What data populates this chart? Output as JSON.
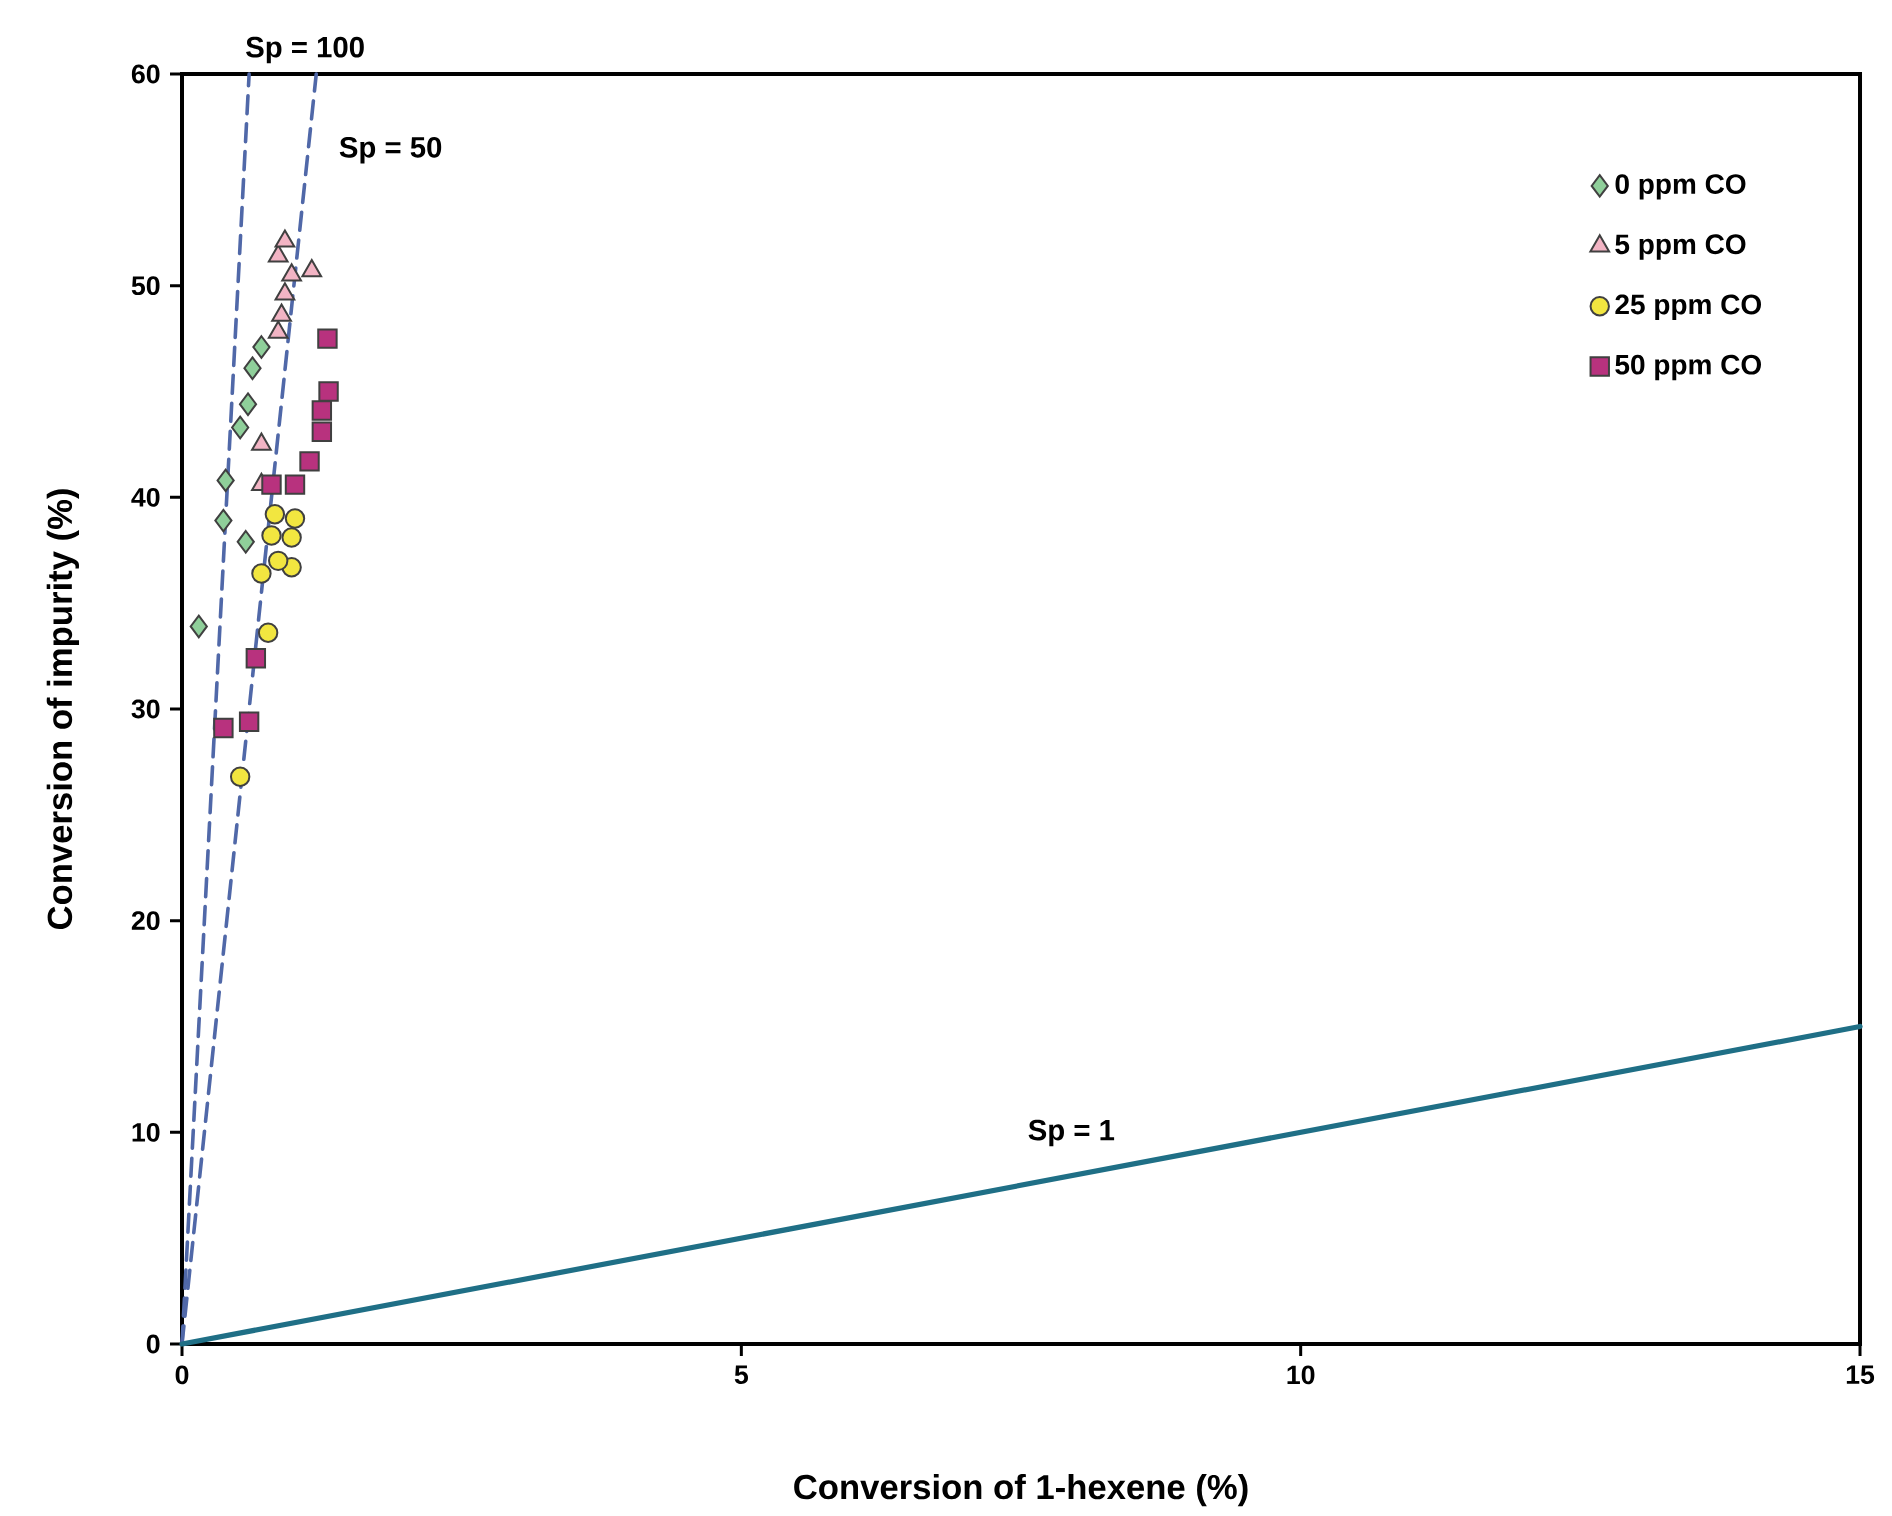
{
  "chart_data": {
    "type": "scatter",
    "xlabel": "Conversion of 1-hexene (%)",
    "ylabel": "Conversion of impurity (%)",
    "xlim": [
      0,
      15
    ],
    "ylim": [
      0,
      60
    ],
    "xticks": [
      0,
      5,
      10,
      15
    ],
    "yticks": [
      0,
      10,
      20,
      30,
      40,
      50,
      60
    ],
    "legend": "top right",
    "series": [
      {
        "name": "0 ppm CO",
        "color": "#8fcf9a",
        "marker": "diamond",
        "x": [
          0.15,
          0.37,
          0.57,
          0.39,
          0.52,
          0.59,
          0.63,
          0.71
        ],
        "values": [
          33.9,
          38.9,
          37.9,
          40.8,
          43.3,
          44.4,
          46.1,
          47.1
        ]
      },
      {
        "name": "5 ppm CO",
        "color": "#f2b4c4",
        "marker": "triangle",
        "x": [
          0.71,
          0.71,
          0.86,
          0.89,
          0.92,
          0.98,
          0.86,
          0.92,
          1.16
        ],
        "values": [
          40.6,
          42.5,
          47.8,
          48.6,
          49.6,
          50.5,
          51.4,
          52.1,
          50.7
        ]
      },
      {
        "name": "25 ppm CO",
        "color": "#f2e640",
        "marker": "circle",
        "x": [
          0.52,
          0.77,
          0.71,
          0.98,
          0.86,
          0.8,
          0.98,
          1.01,
          0.83
        ],
        "values": [
          26.8,
          33.6,
          36.4,
          36.7,
          37.0,
          38.2,
          38.1,
          39.0,
          39.2
        ]
      },
      {
        "name": "50 ppm CO",
        "color": "#b8327e",
        "marker": "square",
        "x": [
          0.37,
          0.6,
          0.66,
          0.8,
          1.01,
          1.14,
          1.25,
          1.25,
          1.31,
          1.3
        ],
        "values": [
          29.1,
          29.4,
          32.4,
          40.6,
          40.6,
          41.7,
          43.1,
          44.1,
          45.0,
          47.5
        ]
      },
      {
        "name": "Sp = 100",
        "type": "line",
        "color": "#5068a8",
        "line_style": "dashed",
        "marker": "none",
        "x": [
          0,
          0.6
        ],
        "values": [
          0,
          60
        ]
      },
      {
        "name": "Sp = 50",
        "type": "line",
        "color": "#5068a8",
        "line_style": "dashed",
        "marker": "none",
        "x": [
          0,
          1.2
        ],
        "values": [
          0,
          60
        ]
      },
      {
        "name": "Sp = 1",
        "type": "line",
        "color": "#1f6f86",
        "line_style": "solid",
        "marker": "none",
        "x": [
          0,
          15
        ],
        "values": [
          0,
          15
        ]
      }
    ]
  }
}
